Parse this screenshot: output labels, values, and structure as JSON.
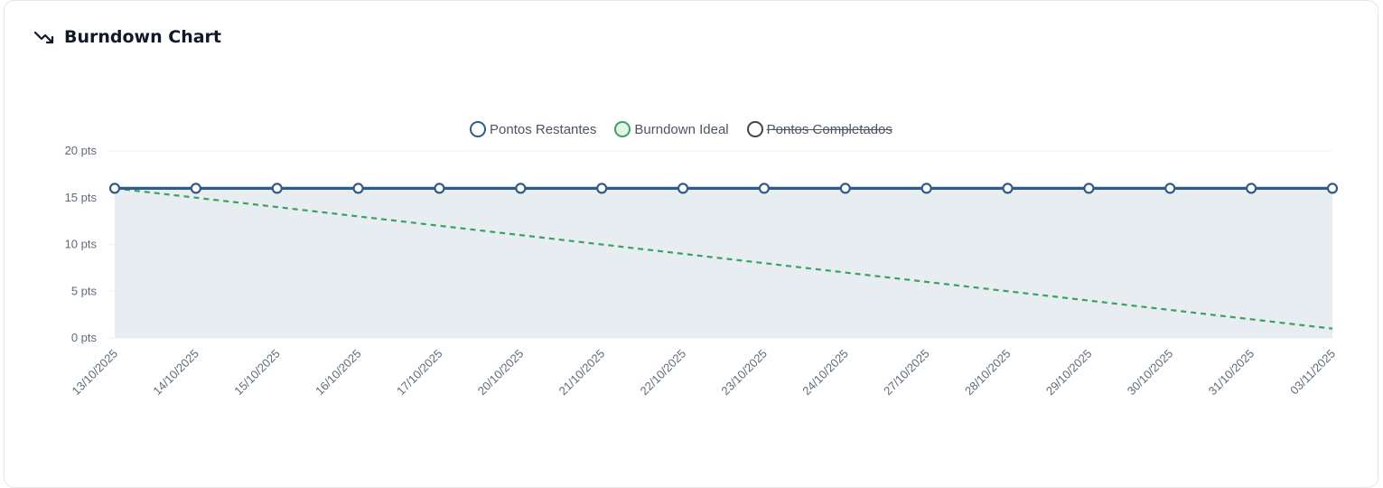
{
  "header": {
    "title": "Burndown Chart",
    "icon": "trending-down-icon"
  },
  "legend": [
    {
      "label": "Pontos Restantes",
      "color": "#2f5b8c",
      "fill": "#ffffff",
      "hidden": false
    },
    {
      "label": "Burndown Ideal",
      "color": "#3aa260",
      "fill": "#e3f3e8",
      "hidden": false
    },
    {
      "label": "Pontos Completados",
      "color": "#444444",
      "fill": "#ffffff",
      "hidden": true
    }
  ],
  "chart_data": {
    "type": "line",
    "x": [
      "13/10/2025",
      "14/10/2025",
      "15/10/2025",
      "16/10/2025",
      "17/10/2025",
      "20/10/2025",
      "21/10/2025",
      "22/10/2025",
      "23/10/2025",
      "24/10/2025",
      "27/10/2025",
      "28/10/2025",
      "29/10/2025",
      "30/10/2025",
      "31/10/2025",
      "03/11/2025"
    ],
    "ylim": [
      0,
      20
    ],
    "yticks": [
      0,
      5,
      10,
      15,
      20
    ],
    "ytick_labels": [
      "0 pts",
      "5 pts",
      "10 pts",
      "15 pts",
      "20 pts"
    ],
    "series": [
      {
        "name": "Pontos Restantes",
        "values": [
          16,
          16,
          16,
          16,
          16,
          16,
          16,
          16,
          16,
          16,
          16,
          16,
          16,
          16,
          16,
          16
        ],
        "color": "#2f5b8c",
        "area_fill": "#e8edf2",
        "style": "solid",
        "markers": true
      },
      {
        "name": "Burndown Ideal",
        "values": [
          16,
          15,
          14,
          13,
          12,
          11,
          10,
          9,
          8,
          7,
          6,
          5,
          4,
          3,
          2,
          1
        ],
        "color": "#3aa260",
        "style": "dashed",
        "markers": false
      }
    ],
    "grid": true
  }
}
